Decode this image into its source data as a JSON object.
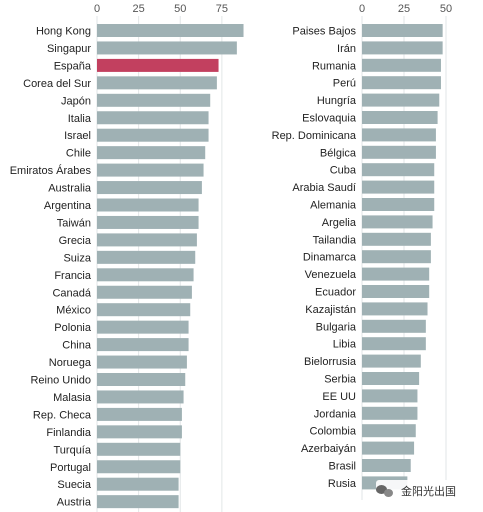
{
  "chart_data": [
    {
      "type": "bar",
      "orientation": "horizontal",
      "title": "",
      "xlabel": "",
      "ylabel": "",
      "xlim": [
        0,
        87
      ],
      "ticks": [
        0,
        25,
        50,
        75
      ],
      "grid": true,
      "bar_color": "#9fb1b4",
      "highlight_color": "#c2405f",
      "highlight_category": "España",
      "categories": [
        "Hong Kong",
        "Singapur",
        "España",
        "Corea del Sur",
        "Japón",
        "Italia",
        "Israel",
        "Chile",
        "Emiratos Árabes",
        "Australia",
        "Argentina",
        "Taiwán",
        "Grecia",
        "Suiza",
        "Francia",
        "Canadá",
        "México",
        "Polonia",
        "China",
        "Noruega",
        "Reino Unido",
        "Malasia",
        "Rep. Checa",
        "Finlandia",
        "Turquía",
        "Portugal",
        "Suecia",
        "Austria"
      ],
      "values": [
        88,
        84,
        73,
        72,
        68,
        67,
        67,
        65,
        64,
        63,
        61,
        61,
        60,
        59,
        58,
        57,
        56,
        55,
        55,
        54,
        53,
        52,
        51,
        51,
        50,
        50,
        49,
        49
      ]
    },
    {
      "type": "bar",
      "orientation": "horizontal",
      "title": "",
      "xlabel": "",
      "ylabel": "",
      "xlim": [
        0,
        50
      ],
      "ticks": [
        0,
        25,
        50
      ],
      "grid": true,
      "bar_color": "#9fb1b4",
      "categories": [
        "Paises Bajos",
        "Irán",
        "Rumania",
        "Perú",
        "Hungría",
        "Eslovaquia",
        "Rep. Dominicana",
        "Bélgica",
        "Cuba",
        "Arabia Saudí",
        "Alemania",
        "Argelia",
        "Tailandia",
        "Dinamarca",
        "Venezuela",
        "Ecuador",
        "Kazajistán",
        "Bulgaria",
        "Libia",
        "Bielorrusia",
        "Serbia",
        "EE UU",
        "Jordania",
        "Colombia",
        "Azerbaiyán",
        "Brasil",
        "Rusia"
      ],
      "values": [
        48,
        48,
        47,
        47,
        46,
        45,
        44,
        44,
        43,
        43,
        43,
        42,
        41,
        41,
        40,
        40,
        39,
        38,
        38,
        35,
        34,
        33,
        33,
        32,
        31,
        29,
        27
      ]
    }
  ],
  "watermark": {
    "text": "金阳光出国",
    "icon": "wechat-icon"
  }
}
